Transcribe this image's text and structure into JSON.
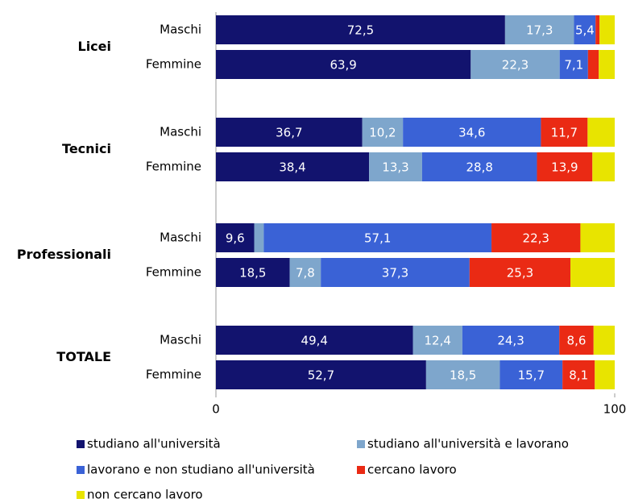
{
  "chart_data": {
    "type": "stacked_barh",
    "groups": [
      "Licei",
      "Tecnici",
      "Professionali",
      "TOTALE"
    ],
    "categories": [
      "Maschi",
      "Femmine",
      "Maschi",
      "Femmine",
      "Maschi",
      "Femmine",
      "Maschi",
      "Femmine"
    ],
    "series": [
      {
        "name": "studiano all'università",
        "color": "#12136e",
        "values": [
          72.5,
          63.9,
          36.7,
          38.4,
          9.6,
          18.5,
          49.4,
          52.7
        ],
        "value_labels": [
          "72,5",
          "63,9",
          "36,7",
          "38,4",
          "9,6",
          "18,5",
          "49,4",
          "52,7"
        ]
      },
      {
        "name": "studiano all'università e lavorano",
        "color": "#7ea6cc",
        "values": [
          17.3,
          22.3,
          10.2,
          13.3,
          2.4,
          7.8,
          12.4,
          18.5
        ],
        "value_labels": [
          "17,3",
          "22,3",
          "10,2",
          "13,3",
          null,
          "7,8",
          "12,4",
          "18,5"
        ]
      },
      {
        "name": "lavorano e non studiano all'università",
        "color": "#3a62d6",
        "values": [
          5.4,
          7.1,
          34.6,
          28.8,
          57.1,
          37.3,
          24.3,
          15.7
        ],
        "value_labels": [
          "5,4",
          "7,1",
          "34,6",
          "28,8",
          "57,1",
          "37,3",
          "24,3",
          "15,7"
        ]
      },
      {
        "name": "cercano lavoro",
        "color": "#ea2a14",
        "values": [
          1.0,
          2.7,
          11.7,
          13.9,
          22.3,
          25.3,
          8.6,
          8.1
        ],
        "value_labels": [
          null,
          null,
          "11,7",
          "13,9",
          "22,3",
          "25,3",
          "8,6",
          "8,1"
        ]
      },
      {
        "name": "non cercano lavoro",
        "color": "#e8e400",
        "values": [
          3.8,
          4.0,
          6.8,
          5.6,
          8.6,
          11.1,
          5.3,
          5.0
        ],
        "value_labels": [
          null,
          null,
          null,
          null,
          null,
          null,
          null,
          null
        ]
      }
    ],
    "xlim": [
      0,
      100
    ],
    "xticks": [
      0,
      100
    ]
  }
}
